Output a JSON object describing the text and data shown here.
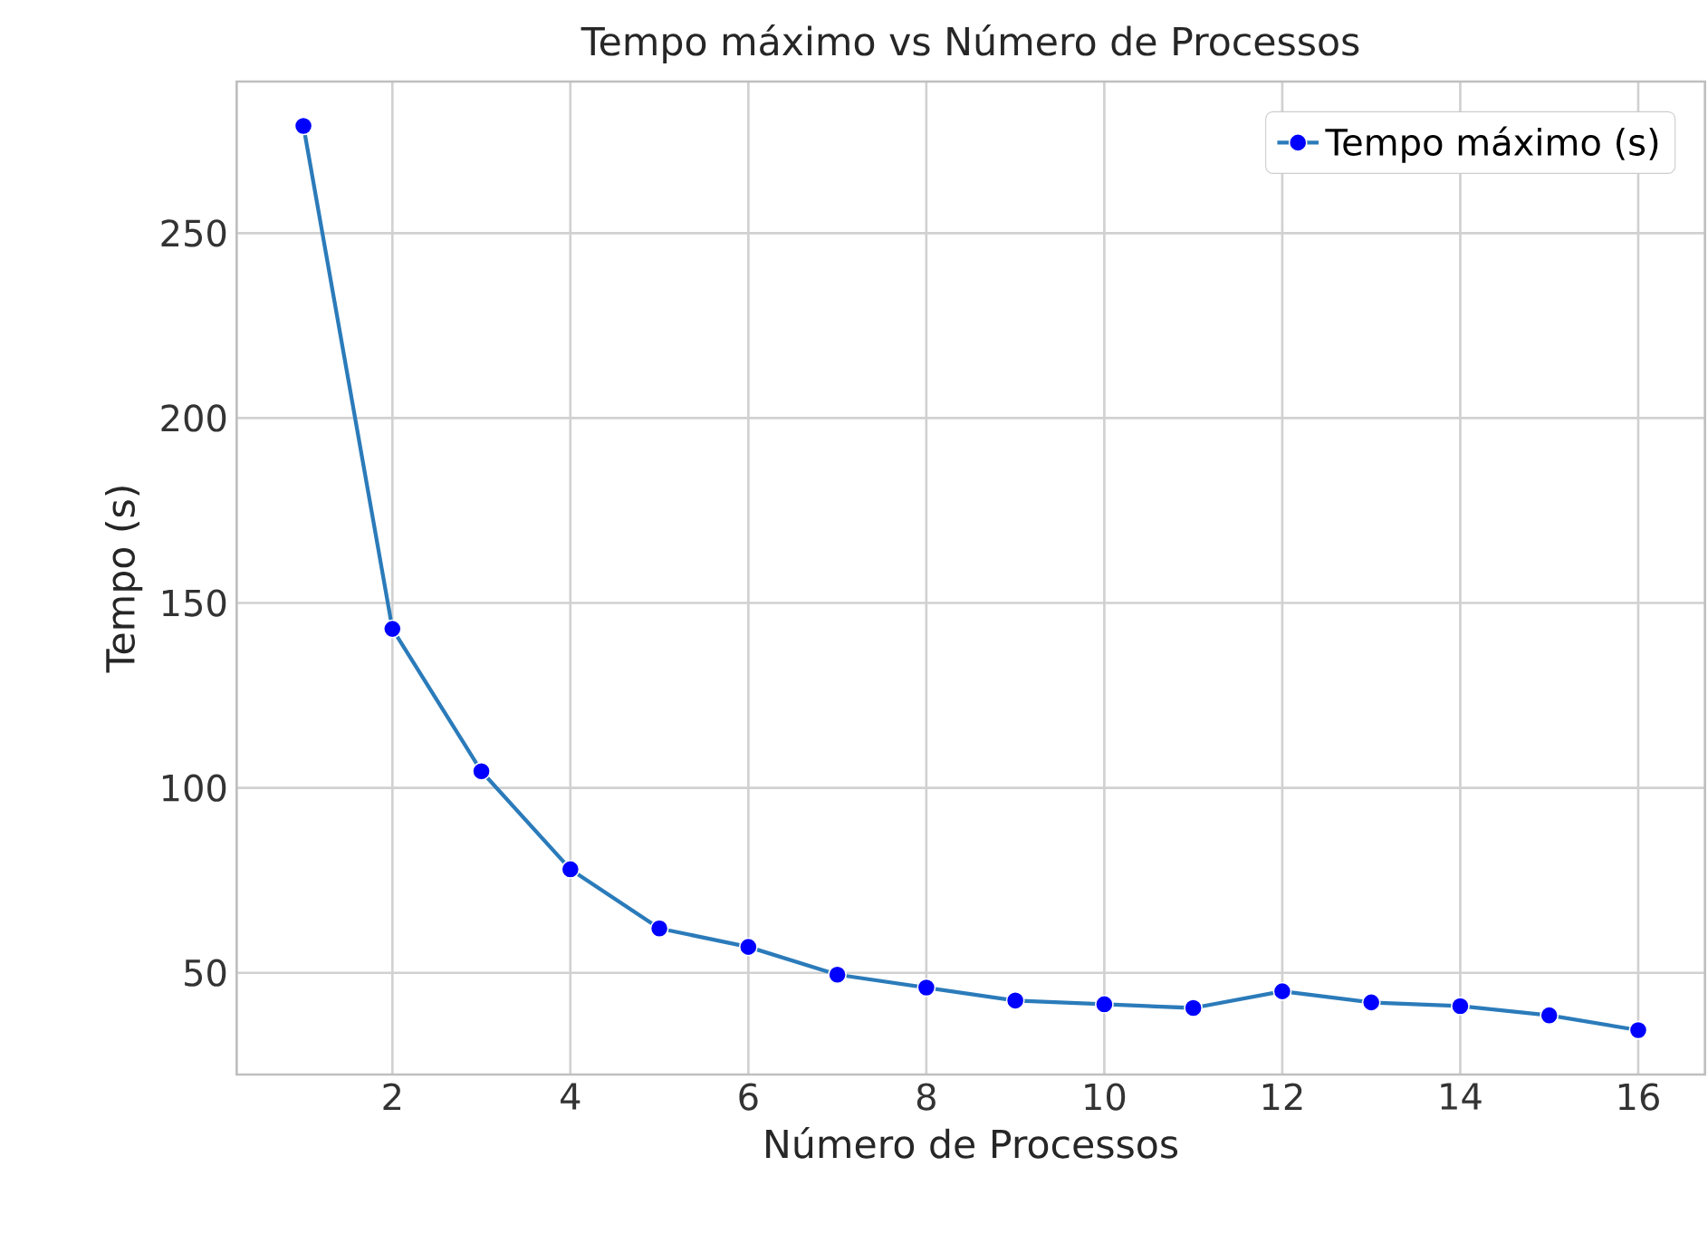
{
  "chart_data": {
    "type": "line",
    "title": "Tempo máximo vs Número de Processos",
    "xlabel": "Número de Processos",
    "ylabel": "Tempo (s)",
    "x": [
      1,
      2,
      3,
      4,
      5,
      6,
      7,
      8,
      9,
      10,
      11,
      12,
      13,
      14,
      15,
      16
    ],
    "series": [
      {
        "name": "Tempo máximo (s)",
        "color": "#2b7bba",
        "values": [
          279,
          143,
          104.5,
          78,
          62,
          57,
          49.5,
          46,
          42.5,
          41.5,
          40.5,
          45,
          42,
          41,
          38.5,
          34.5
        ]
      }
    ],
    "xlim": [
      0.25,
      16.75
    ],
    "ylim": [
      22.5,
      291
    ],
    "xticks": [
      2,
      4,
      6,
      8,
      10,
      12,
      14,
      16
    ],
    "yticks": [
      50,
      100,
      150,
      200,
      250
    ],
    "grid": true,
    "legend": "top right",
    "marker": "circle",
    "line_style": "solid"
  }
}
